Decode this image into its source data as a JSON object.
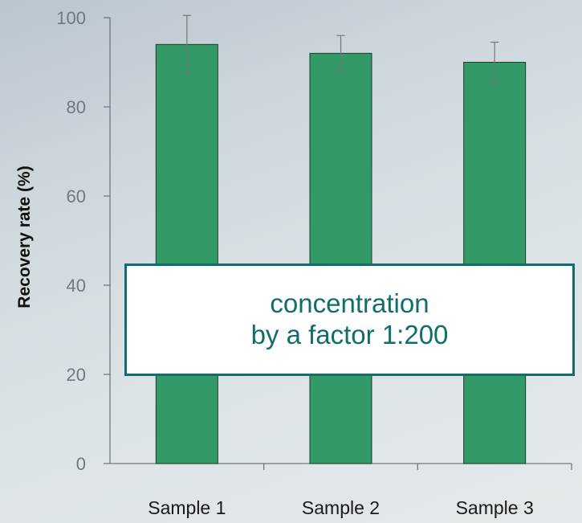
{
  "chart_data": {
    "type": "bar",
    "categories": [
      "Sample 1",
      "Sample 2",
      "Sample 3"
    ],
    "values": [
      94,
      92,
      90
    ],
    "error": [
      6.5,
      4.0,
      4.5
    ],
    "ylabel": "Recovery rate (%)",
    "xlabel": "",
    "ylim": [
      0,
      100
    ],
    "yticks": [
      0,
      20,
      40,
      60,
      80,
      100
    ],
    "bar_color": "#339966",
    "grid": false
  },
  "annotation": {
    "line1": "concentration",
    "line2": "by a factor 1:200",
    "color": "#0f6e6c"
  }
}
